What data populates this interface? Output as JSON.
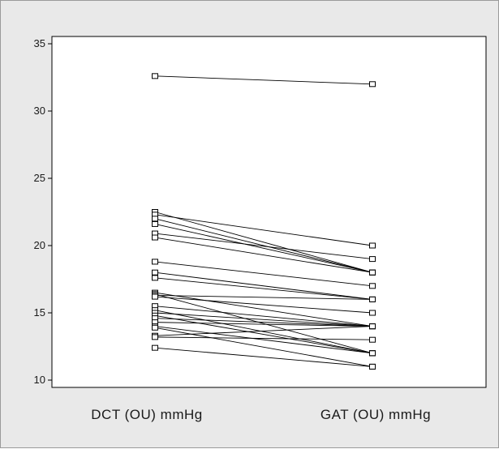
{
  "chart_data": {
    "type": "line",
    "chart_style": "paired-slope",
    "categories": [
      "DCT (OU) mmHg",
      "GAT (OU) mmHg"
    ],
    "ylim": [
      10,
      35.5
    ],
    "yticks": [
      "10",
      "15",
      "20",
      "25",
      "30",
      "35"
    ],
    "grid": false,
    "legend": "none",
    "marker": "open-square",
    "colors": {
      "line": "#000000",
      "plot_bg": "#ffffff",
      "figure_bg": "#e9e9e9"
    },
    "series": [
      {
        "values": [
          32.6,
          32.0
        ]
      },
      {
        "values": [
          22.5,
          18.0
        ]
      },
      {
        "values": [
          22.3,
          20.0
        ]
      },
      {
        "values": [
          22.0,
          18.0
        ]
      },
      {
        "values": [
          21.6,
          18.0
        ]
      },
      {
        "values": [
          20.9,
          19.0
        ]
      },
      {
        "values": [
          20.6,
          18.0
        ]
      },
      {
        "values": [
          18.8,
          17.0
        ]
      },
      {
        "values": [
          18.0,
          16.0
        ]
      },
      {
        "values": [
          17.6,
          16.0
        ]
      },
      {
        "values": [
          16.5,
          14.0
        ]
      },
      {
        "values": [
          16.4,
          12.0
        ]
      },
      {
        "values": [
          16.3,
          16.0
        ]
      },
      {
        "values": [
          16.2,
          15.0
        ]
      },
      {
        "values": [
          15.5,
          14.0
        ]
      },
      {
        "values": [
          15.2,
          12.0
        ]
      },
      {
        "values": [
          15.0,
          14.0
        ]
      },
      {
        "values": [
          14.8,
          12.0
        ]
      },
      {
        "values": [
          14.6,
          14.0
        ]
      },
      {
        "values": [
          14.3,
          14.0
        ]
      },
      {
        "values": [
          14.0,
          12.0
        ]
      },
      {
        "values": [
          13.9,
          11.0
        ]
      },
      {
        "values": [
          13.3,
          14.0
        ]
      },
      {
        "values": [
          13.2,
          13.0
        ]
      },
      {
        "values": [
          12.4,
          11.0
        ]
      }
    ]
  }
}
